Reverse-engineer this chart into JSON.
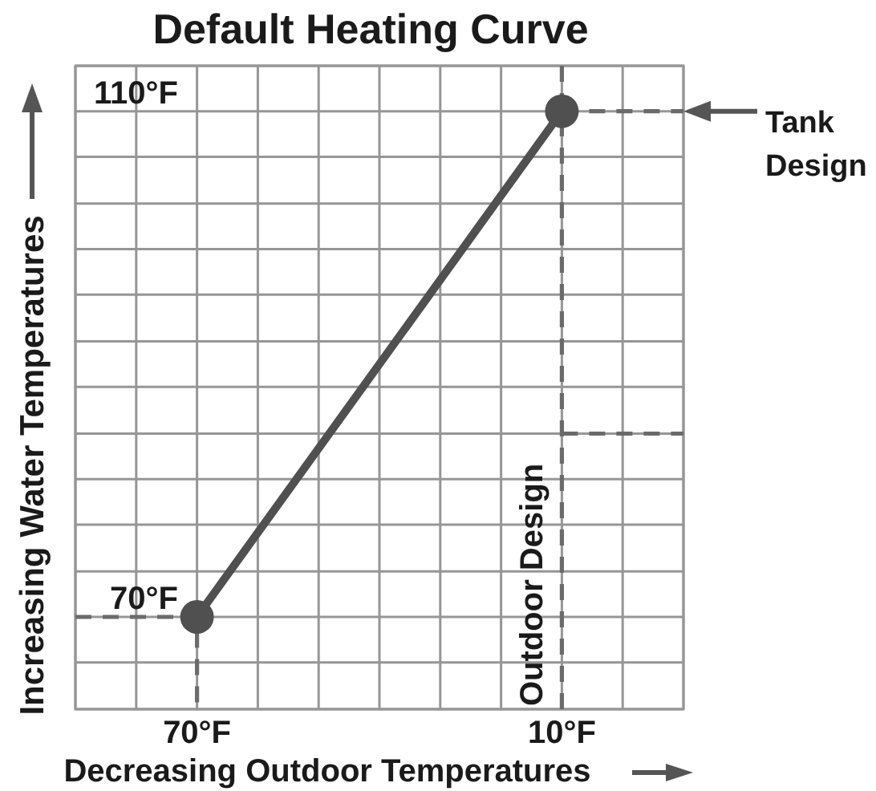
{
  "chart_data": {
    "type": "line",
    "title": "Default Heating Curve",
    "xlabel": "Decreasing Outdoor Temperatures",
    "ylabel": "Increasing Water Temperatures",
    "xlim": [
      90,
      -10
    ],
    "ylim": [
      62.7,
      113.6
    ],
    "xticks": [
      {
        "value": 90,
        "label": null
      },
      {
        "value": 80,
        "label": null
      },
      {
        "value": 70,
        "label": "70°F"
      },
      {
        "value": 60,
        "label": null
      },
      {
        "value": 50,
        "label": null
      },
      {
        "value": 40,
        "label": null
      },
      {
        "value": 30,
        "label": null
      },
      {
        "value": 20,
        "label": null
      },
      {
        "value": 10,
        "label": "10°F"
      },
      {
        "value": 0,
        "label": null
      },
      {
        "value": -10,
        "label": null
      }
    ],
    "yticks": [
      {
        "value": 62.7,
        "label": null
      },
      {
        "value": 66.4,
        "label": null
      },
      {
        "value": 70,
        "label": "70°F"
      },
      {
        "value": 73.6,
        "label": null
      },
      {
        "value": 77.3,
        "label": null
      },
      {
        "value": 80.9,
        "label": null
      },
      {
        "value": 84.5,
        "label": null
      },
      {
        "value": 88.2,
        "label": null
      },
      {
        "value": 91.8,
        "label": null
      },
      {
        "value": 95.5,
        "label": null
      },
      {
        "value": 99.1,
        "label": null
      },
      {
        "value": 102.7,
        "label": null
      },
      {
        "value": 106.4,
        "label": null
      },
      {
        "value": 110,
        "label": "110°F"
      },
      {
        "value": 113.6,
        "label": null
      }
    ],
    "grid": true,
    "marker": "circle",
    "series": [
      {
        "color": "#505050",
        "x": [
          70,
          10
        ],
        "values": [
          70,
          110
        ]
      },
      {
        "color": "#6b6b6b",
        "x": [
          90,
          70,
          70
        ],
        "values": [
          70,
          70,
          62.7
        ],
        "line_style": "dashed",
        "marker": "none"
      },
      {
        "color": "#6b6b6b",
        "x": [
          10,
          -10
        ],
        "values": [
          110,
          110
        ],
        "line_style": "dashed",
        "marker": "none"
      },
      {
        "color": "#6b6b6b",
        "x": [
          10,
          -10
        ],
        "values": [
          84.5,
          84.5
        ],
        "line_style": "dashed",
        "marker": "none"
      }
    ],
    "ref_lines": [
      {
        "axis": "x",
        "value": 10,
        "label": "Outdoor Design",
        "line_style": "dashed",
        "color": "#6b6b6b"
      }
    ],
    "annotations": [
      {
        "text": "Tank Design",
        "x": -10,
        "y": 110
      }
    ]
  }
}
